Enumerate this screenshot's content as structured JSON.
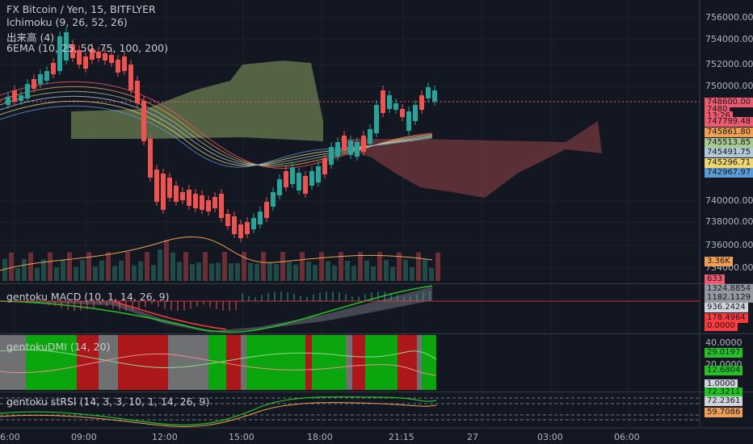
{
  "header": {
    "symbol": "FX Bitcoin / Yen, 15, BITFLYER",
    "ind1": "Ichimoku (9, 26, 52, 26)",
    "ind2": "出来高 (4)",
    "ind3": "6EMA (10, 25, 50, 75, 100, 200)"
  },
  "panes": {
    "macd": "gentoku MACD (10, 1, 14, 26, 9)",
    "dmi": "gentokuDMI (14, 20)",
    "srsi": "gentoku stRSI (14, 3, 3, 10, 1, 14, 26, 9)"
  },
  "price_axis": [
    "756000.00",
    "754000.00",
    "752000.00",
    "750000.00",
    "740000.00",
    "738000.00",
    "736000.00",
    "734000.00"
  ],
  "price_tags": [
    {
      "text": "748600.00",
      "bg": "#f05a6e"
    },
    {
      "text": "7480",
      "bg": "#f05a6e"
    },
    {
      "text": "13:26",
      "bg": "#f05a6e"
    },
    {
      "text": "747799.48",
      "bg": "#f05a6e"
    },
    {
      "text": "745861.80",
      "bg": "#f0a050"
    },
    {
      "text": "745513.85",
      "bg": "#a8c890"
    },
    {
      "text": "745491.75",
      "bg": "#b0c8d8"
    },
    {
      "text": "745296.71",
      "bg": "#f0d870"
    },
    {
      "text": "742967.97",
      "bg": "#5b9bd5"
    }
  ],
  "volume_tags": [
    {
      "text": "3.36K",
      "bg": "#f0a050"
    },
    {
      "text": "633",
      "bg": "#f05a6e"
    }
  ],
  "macd_tags": [
    {
      "text": "1324.8854",
      "bg": "#9598a1"
    },
    {
      "text": "1182.1129",
      "bg": "#9598a1"
    },
    {
      "text": "936.2424",
      "bg": "#d1d4dc"
    },
    {
      "text": "178.4964",
      "bg": "#ff3b3b"
    },
    {
      "text": "0.0000",
      "bg": "#ff3b3b"
    }
  ],
  "dmi_axis": [
    "40.0000",
    "20.0000"
  ],
  "dmi_tags": [
    {
      "text": "29.0197",
      "bg": "#22c322"
    },
    {
      "text": "12.6804",
      "bg": "#22c322"
    },
    {
      "text": "1.0000",
      "bg": "#d1d4dc"
    }
  ],
  "srsi_tags": [
    {
      "text": "72.3211",
      "bg": "#22c322"
    },
    {
      "text": "72.2361",
      "bg": "#d1d4dc"
    },
    {
      "text": "59.7086",
      "bg": "#f0a050"
    }
  ],
  "time_axis": [
    "6:00",
    "09:00",
    "12:00",
    "15:00",
    "18:00",
    "21:15",
    "27",
    "03:00",
    "06:00"
  ],
  "colors": {
    "up": "#26a69a",
    "down": "#ef5350",
    "bg": "#131722",
    "cloud_up": "#7a8f5a",
    "cloud_down": "#7a3a3e"
  }
}
